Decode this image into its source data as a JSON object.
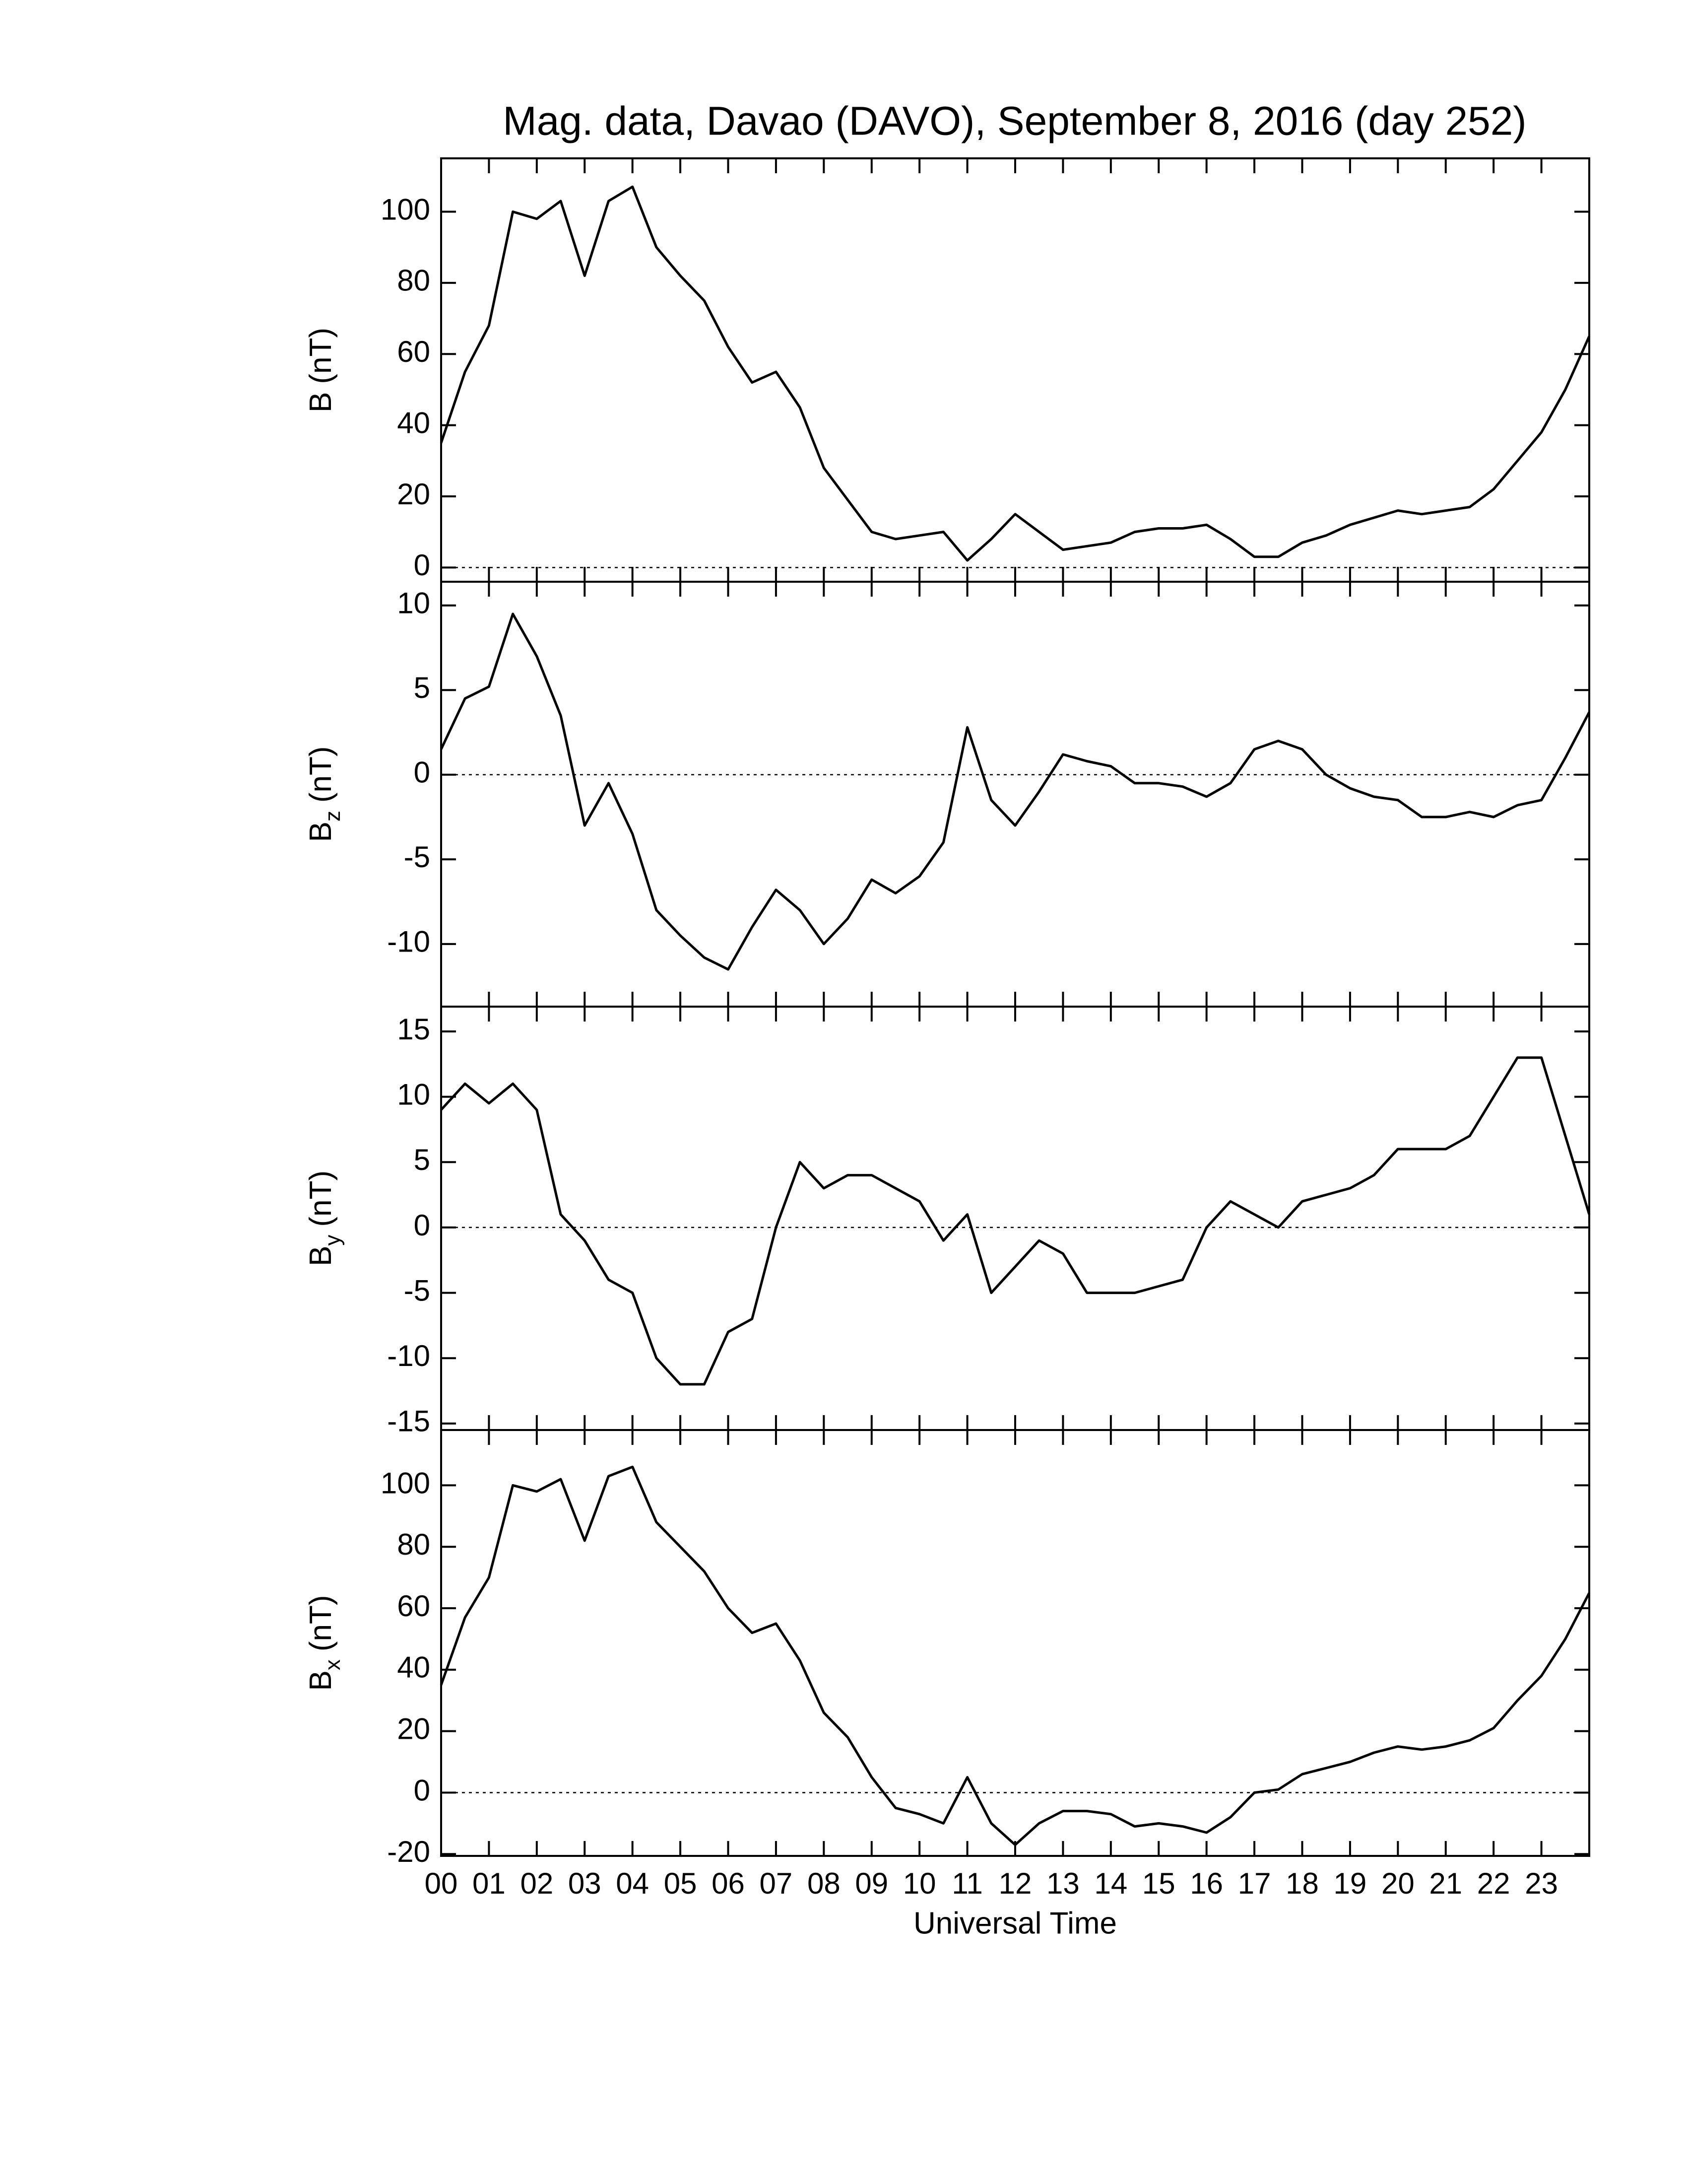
{
  "chart_data": [
    {
      "type": "line",
      "title": "Mag. data, Davao (DAVO), September 8, 2016 (day 252)",
      "ylabel": "B",
      "ylabel_unit": "(nT)",
      "color": "#000000",
      "zero_line": true,
      "xlim": [
        0,
        24
      ],
      "ylim": [
        -4,
        115
      ],
      "yticks": [
        0,
        20,
        40,
        60,
        80,
        100
      ],
      "x": [
        0,
        0.5,
        1,
        1.5,
        2,
        2.5,
        3,
        3.5,
        4,
        4.5,
        5,
        5.5,
        6,
        6.5,
        7,
        7.5,
        8,
        8.5,
        9,
        9.5,
        10,
        10.5,
        11,
        11.5,
        12,
        12.5,
        13,
        13.5,
        14,
        14.5,
        15,
        15.5,
        16,
        16.5,
        17,
        17.5,
        18,
        18.5,
        19,
        19.5,
        20,
        20.5,
        21,
        21.5,
        22,
        22.5,
        23,
        23.5,
        24
      ],
      "values": [
        35,
        55,
        68,
        100,
        98,
        103,
        82,
        103,
        107,
        90,
        82,
        75,
        62,
        52,
        55,
        45,
        28,
        19,
        10,
        8,
        9,
        10,
        2,
        8,
        15,
        10,
        5,
        6,
        7,
        10,
        11,
        11,
        12,
        8,
        3,
        3,
        7,
        9,
        12,
        14,
        16,
        15,
        16,
        17,
        22,
        30,
        38,
        50,
        65
      ]
    },
    {
      "type": "line",
      "ylabel": "B",
      "ylabel_sub": "z",
      "ylabel_unit": "(nT)",
      "color": "#000000",
      "zero_line": true,
      "xlim": [
        0,
        24
      ],
      "ylim": [
        -13.7,
        11.4
      ],
      "yticks": [
        -10,
        -5,
        0,
        5,
        10
      ],
      "x": [
        0,
        0.5,
        1,
        1.5,
        2,
        2.5,
        3,
        3.5,
        4,
        4.5,
        5,
        5.5,
        6,
        6.5,
        7,
        7.5,
        8,
        8.5,
        9,
        9.5,
        10,
        10.5,
        11,
        11.5,
        12,
        12.5,
        13,
        13.5,
        14,
        14.5,
        15,
        15.5,
        16,
        16.5,
        17,
        17.5,
        18,
        18.5,
        19,
        19.5,
        20,
        20.5,
        21,
        21.5,
        22,
        22.5,
        23,
        23.5,
        24
      ],
      "values": [
        1.5,
        4.5,
        5.2,
        9.5,
        7,
        3.5,
        -3,
        -0.5,
        -3.5,
        -8,
        -9.5,
        -10.8,
        -11.5,
        -9,
        -6.8,
        -8,
        -10,
        -8.5,
        -6.2,
        -7,
        -6,
        -4,
        2.8,
        -1.5,
        -3,
        -1,
        1.2,
        0.8,
        0.5,
        -0.5,
        -0.5,
        -0.7,
        -1.3,
        -0.5,
        1.5,
        2,
        1.5,
        0,
        -0.8,
        -1.3,
        -1.5,
        -2.5,
        -2.5,
        -2.2,
        -2.5,
        -1.8,
        -1.5,
        1,
        3.7
      ]
    },
    {
      "type": "line",
      "ylabel": "B",
      "ylabel_sub": "y",
      "ylabel_unit": "(nT)",
      "color": "#000000",
      "zero_line": true,
      "xlim": [
        0,
        24
      ],
      "ylim": [
        -15.5,
        16.9
      ],
      "yticks": [
        -15,
        -10,
        -5,
        0,
        5,
        10,
        15
      ],
      "x": [
        0,
        0.5,
        1,
        1.5,
        2,
        2.5,
        3,
        3.5,
        4,
        4.5,
        5,
        5.5,
        6,
        6.5,
        7,
        7.5,
        8,
        8.5,
        9,
        9.5,
        10,
        10.5,
        11,
        11.5,
        12,
        12.5,
        13,
        13.5,
        14,
        14.5,
        15,
        15.5,
        16,
        16.5,
        17,
        17.5,
        18,
        18.5,
        19,
        19.5,
        20,
        20.5,
        21,
        21.5,
        22,
        22.5,
        23,
        23.5,
        24
      ],
      "values": [
        9,
        11,
        9.5,
        11,
        9,
        1,
        -1,
        -4,
        -5,
        -10,
        -12,
        -12,
        -8,
        -7,
        0,
        5,
        3,
        4,
        4,
        3,
        2,
        -1,
        1,
        -5,
        -3,
        -1,
        -2,
        -5,
        -5,
        -5,
        -4.5,
        -4,
        0,
        2,
        1,
        0,
        2,
        2.5,
        3,
        4,
        6,
        6,
        6,
        7,
        10,
        13,
        13,
        7,
        1
      ]
    },
    {
      "type": "line",
      "ylabel": "B",
      "ylabel_sub": "x",
      "ylabel_unit": "(nT)",
      "color": "#000000",
      "zero_line": true,
      "xlabel": "Universal Time",
      "xlim": [
        0,
        24
      ],
      "ylim": [
        -20.6,
        118
      ],
      "yticks": [
        -20,
        0,
        20,
        40,
        60,
        80,
        100
      ],
      "xticks": [
        {
          "value": 0,
          "label": "00"
        },
        {
          "value": 1,
          "label": "01"
        },
        {
          "value": 2,
          "label": "02"
        },
        {
          "value": 3,
          "label": "03"
        },
        {
          "value": 4,
          "label": "04"
        },
        {
          "value": 5,
          "label": "05"
        },
        {
          "value": 6,
          "label": "06"
        },
        {
          "value": 7,
          "label": "07"
        },
        {
          "value": 8,
          "label": "08"
        },
        {
          "value": 9,
          "label": "09"
        },
        {
          "value": 10,
          "label": "10"
        },
        {
          "value": 11,
          "label": "11"
        },
        {
          "value": 12,
          "label": "12"
        },
        {
          "value": 13,
          "label": "13"
        },
        {
          "value": 14,
          "label": "14"
        },
        {
          "value": 15,
          "label": "15"
        },
        {
          "value": 16,
          "label": "16"
        },
        {
          "value": 17,
          "label": "17"
        },
        {
          "value": 18,
          "label": "18"
        },
        {
          "value": 19,
          "label": "19"
        },
        {
          "value": 20,
          "label": "20"
        },
        {
          "value": 21,
          "label": "21"
        },
        {
          "value": 22,
          "label": "22"
        },
        {
          "value": 23,
          "label": "23"
        }
      ],
      "x": [
        0,
        0.5,
        1,
        1.5,
        2,
        2.5,
        3,
        3.5,
        4,
        4.5,
        5,
        5.5,
        6,
        6.5,
        7,
        7.5,
        8,
        8.5,
        9,
        9.5,
        10,
        10.5,
        11,
        11.5,
        12,
        12.5,
        13,
        13.5,
        14,
        14.5,
        15,
        15.5,
        16,
        16.5,
        17,
        17.5,
        18,
        18.5,
        19,
        19.5,
        20,
        20.5,
        21,
        21.5,
        22,
        22.5,
        23,
        23.5,
        24
      ],
      "values": [
        35,
        57,
        70,
        100,
        98,
        102,
        82,
        103,
        106,
        88,
        80,
        72,
        60,
        52,
        55,
        43,
        26,
        18,
        5,
        -5,
        -7,
        -10,
        5,
        -10,
        -17,
        -10,
        -6,
        -6,
        -7,
        -11,
        -10,
        -11,
        -13,
        -8,
        0,
        1,
        6,
        8,
        10,
        13,
        15,
        14,
        15,
        17,
        21,
        30,
        38,
        50,
        65
      ]
    }
  ]
}
